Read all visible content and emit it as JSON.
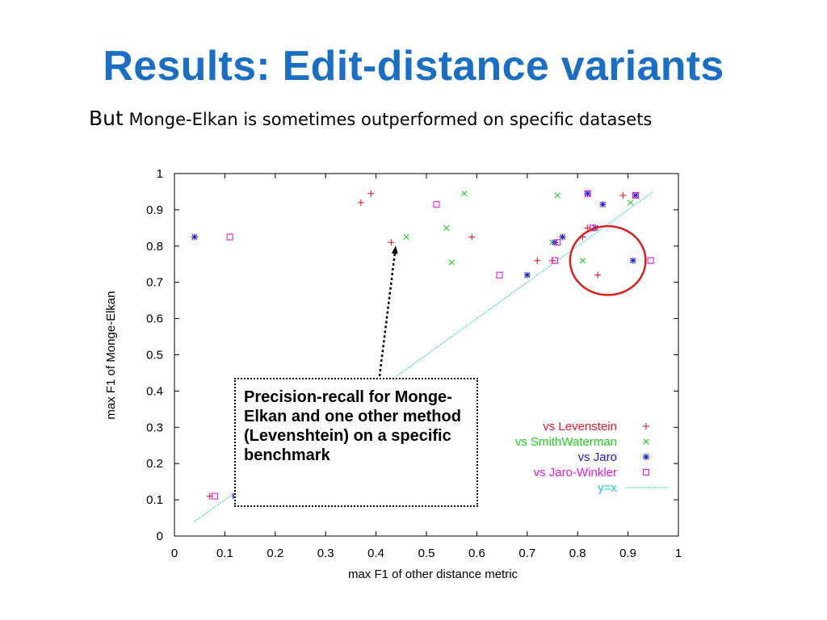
{
  "slide": {
    "title": "Results: Edit-distance variants",
    "subtitle_lead": "But",
    "subtitle_rest": " Monge-Elkan is sometimes outperformed on specific datasets",
    "callout_text": "Precision-recall for Monge-Elkan and one other method (Levenshtein) on a specific benchmark"
  },
  "colors": {
    "title": "#1a6fc4",
    "levenstein": "#e8192c",
    "smithwaterman": "#19d419",
    "jaro": "#1a1adb",
    "jarowinkler": "#e619e6",
    "identity": "#19c8e6",
    "highlight_ellipse": "#dd1f1f"
  },
  "chart_data": {
    "type": "scatter",
    "xlabel": "max F1 of other distance metric",
    "ylabel": "max F1 of Monge-Elkan",
    "xlim": [
      0,
      1
    ],
    "ylim": [
      0,
      1
    ],
    "xticks": [
      "0",
      "0.1",
      "0.2",
      "0.3",
      "0.4",
      "0.5",
      "0.6",
      "0.7",
      "0.8",
      "0.9",
      "1"
    ],
    "yticks": [
      "0",
      "0.1",
      "0.2",
      "0.3",
      "0.4",
      "0.5",
      "0.6",
      "0.7",
      "0.8",
      "0.9",
      "1"
    ],
    "grid": false,
    "legend_position": "bottom-right",
    "series": [
      {
        "name": "vs Levenstein",
        "marker": "plus",
        "color": "#e8192c",
        "points": [
          [
            0.07,
            0.11
          ],
          [
            0.37,
            0.92
          ],
          [
            0.39,
            0.945
          ],
          [
            0.43,
            0.81
          ],
          [
            0.59,
            0.825
          ],
          [
            0.72,
            0.76
          ],
          [
            0.75,
            0.76
          ],
          [
            0.81,
            0.825
          ],
          [
            0.82,
            0.85
          ],
          [
            0.84,
            0.72
          ],
          [
            0.89,
            0.94
          ]
        ]
      },
      {
        "name": "vs SmithWaterman",
        "marker": "cross",
        "color": "#19d419",
        "points": [
          [
            0.46,
            0.825
          ],
          [
            0.54,
            0.85
          ],
          [
            0.55,
            0.755
          ],
          [
            0.575,
            0.945
          ],
          [
            0.7,
            0.72
          ],
          [
            0.75,
            0.81
          ],
          [
            0.76,
            0.94
          ],
          [
            0.81,
            0.76
          ],
          [
            0.905,
            0.92
          ]
        ]
      },
      {
        "name": "vs Jaro",
        "marker": "star",
        "color": "#1a1adb",
        "points": [
          [
            0.04,
            0.825
          ],
          [
            0.12,
            0.11
          ],
          [
            0.7,
            0.72
          ],
          [
            0.755,
            0.81
          ],
          [
            0.77,
            0.825
          ],
          [
            0.82,
            0.945
          ],
          [
            0.835,
            0.85
          ],
          [
            0.85,
            0.915
          ],
          [
            0.91,
            0.76
          ],
          [
            0.915,
            0.94
          ]
        ]
      },
      {
        "name": "vs Jaro-Winkler",
        "marker": "square",
        "color": "#e619e6",
        "points": [
          [
            0.08,
            0.11
          ],
          [
            0.11,
            0.825
          ],
          [
            0.52,
            0.915
          ],
          [
            0.645,
            0.72
          ],
          [
            0.755,
            0.76
          ],
          [
            0.76,
            0.81
          ],
          [
            0.82,
            0.945
          ],
          [
            0.83,
            0.85
          ],
          [
            0.915,
            0.94
          ],
          [
            0.945,
            0.76
          ]
        ]
      }
    ],
    "reference_line": {
      "name": "y=x",
      "from": [
        0.04,
        0.04
      ],
      "to": [
        0.95,
        0.95
      ],
      "color": "#19c8e6"
    },
    "callout_target": [
      0.435,
      0.81
    ],
    "highlight": {
      "center": [
        0.86,
        0.76
      ],
      "rx": 0.075,
      "ry": 0.095,
      "color": "#dd1f1f"
    }
  }
}
